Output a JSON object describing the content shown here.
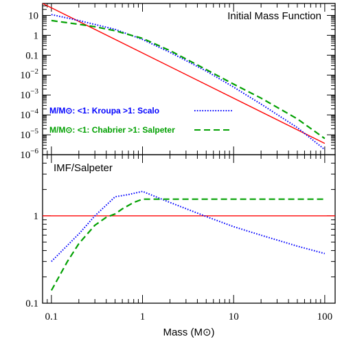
{
  "chart_data": [
    {
      "type": "line",
      "title": "Initial Mass Function",
      "xlabel": "",
      "ylabel": "",
      "x_scale": "log",
      "y_scale": "log",
      "xlim": [
        0.08,
        130
      ],
      "ylim": [
        1e-06,
        40
      ],
      "x_ticks": [],
      "y_ticks": [
        "10",
        "1",
        "0.1",
        "10−2",
        "10−3",
        "10−4",
        "10−5",
        "10−6"
      ],
      "y_tick_values": [
        10,
        1,
        0.1,
        0.01,
        0.001,
        0.0001,
        1e-05,
        1e-06
      ],
      "legend": [
        {
          "text": "M/M⊙: <1: Kroupa   >1: Scalo",
          "style": "dotted",
          "color": "#0000ff"
        },
        {
          "text": "M/M⊙: <1: Chabrier  >1: Salpeter",
          "style": "dashed",
          "color": "#00a000"
        }
      ],
      "series": [
        {
          "color": "#ff0000",
          "style": "solid",
          "x": [
            0.08,
            100
          ],
          "y": [
            40,
            3.7e-06
          ]
        },
        {
          "color": "#0000ff",
          "style": "dotted",
          "x": [
            0.1,
            0.2,
            0.5,
            1,
            2,
            5,
            10,
            20,
            50,
            100
          ],
          "y": [
            11,
            5.5,
            2.0,
            0.62,
            0.14,
            0.016,
            0.0025,
            0.00035,
            2.3e-05,
            1.8e-06
          ]
        },
        {
          "color": "#00a000",
          "style": "dashed",
          "x": [
            0.1,
            0.2,
            0.3,
            0.5,
            0.7,
            1,
            2,
            5,
            10,
            20,
            50,
            100
          ],
          "y": [
            5.5,
            3.6,
            2.7,
            1.7,
            1.1,
            0.7,
            0.17,
            0.019,
            0.0035,
            0.0007,
            6.3e-05,
            6.5e-06
          ]
        }
      ]
    },
    {
      "type": "line",
      "title": "IMF/Salpeter",
      "xlabel": "Mass (M⊙)",
      "ylabel": "",
      "x_scale": "log",
      "y_scale": "log",
      "xlim": [
        0.08,
        130
      ],
      "ylim": [
        0.1,
        5
      ],
      "x_ticks": [
        "0.1",
        "1",
        "10",
        "100"
      ],
      "x_tick_values": [
        0.1,
        1,
        10,
        100
      ],
      "y_ticks": [
        "1",
        "0.1"
      ],
      "y_tick_values": [
        1,
        0.1
      ],
      "series": [
        {
          "color": "#ff0000",
          "style": "solid",
          "x": [
            0.08,
            130
          ],
          "y": [
            1,
            1
          ]
        },
        {
          "color": "#0000ff",
          "style": "dotted",
          "x": [
            0.1,
            0.2,
            0.3,
            0.5,
            0.7,
            1,
            2,
            5,
            10,
            20,
            50,
            100
          ],
          "y": [
            0.3,
            0.62,
            1.0,
            1.65,
            1.75,
            1.9,
            1.42,
            0.98,
            0.75,
            0.6,
            0.45,
            0.37
          ]
        },
        {
          "color": "#00a000",
          "style": "dashed",
          "x": [
            0.1,
            0.15,
            0.2,
            0.3,
            0.4,
            0.5,
            0.6,
            0.8,
            1,
            2,
            5,
            10,
            20,
            50,
            100
          ],
          "y": [
            0.14,
            0.3,
            0.48,
            0.78,
            0.96,
            1.05,
            1.2,
            1.42,
            1.55,
            1.55,
            1.55,
            1.55,
            1.55,
            1.55,
            1.55
          ]
        }
      ]
    }
  ]
}
